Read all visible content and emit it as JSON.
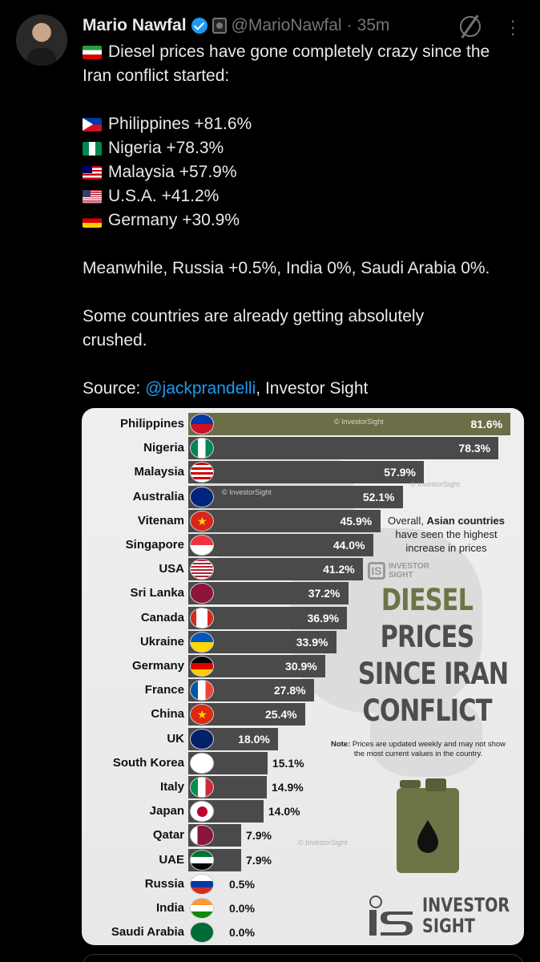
{
  "post": {
    "author_name": "Mario Nawfal",
    "handle": "@MarioNawfal",
    "separator": "·",
    "time": "35m",
    "lines": [
      "Diesel prices have gone completely crazy since the",
      "Iran conflict started:",
      "Philippines +81.6%",
      "Nigeria +78.3%",
      "Malaysia +57.9%",
      "U.S.A. +41.2%",
      "Germany +30.9%",
      "Meanwhile, Russia +0.5%, India 0%, Saudi Arabia 0%.",
      "Some countries are already getting absolutely crushed.",
      "Source: ",
      "@jackprandelli",
      ", Investor Sight"
    ]
  },
  "infographic": {
    "title_lines": [
      "DIESEL",
      "PRICES",
      "SINCE IRAN",
      "CONFLICT"
    ],
    "overall_prefix": "Overall, ",
    "overall_bold": "Asian countries",
    "overall_rest": "have seen the highest increase in prices",
    "note_bold": "Note:",
    "note_text": "Prices are updated weekly and may not show the most current values in the country.",
    "watermark": "© InvestorSight",
    "brand_line1": "INVESTOR",
    "brand_line2": "SIGHT",
    "logo_mark": "IS",
    "colors": {
      "bar": "#4a4a4a",
      "bar_top": "#6b6e47",
      "background": "#ececec"
    },
    "chart_data": {
      "type": "bar",
      "title": "DIESEL PRICES SINCE IRAN CONFLICT",
      "categories": [
        "Philippines",
        "Nigeria",
        "Malaysia",
        "Australia",
        "Vitenam",
        "Singapore",
        "USA",
        "Sri Lanka",
        "Canada",
        "Ukraine",
        "Germany",
        "France",
        "China",
        "UK",
        "South Korea",
        "Italy",
        "Japan",
        "Qatar",
        "UAE",
        "Russia",
        "India",
        "Saudi Arabia"
      ],
      "values": [
        81.6,
        78.3,
        57.9,
        52.1,
        45.9,
        44.0,
        41.2,
        37.2,
        36.9,
        33.9,
        30.9,
        27.8,
        25.4,
        18.0,
        15.1,
        14.9,
        14.0,
        7.9,
        7.9,
        0.5,
        0.0,
        0.0
      ],
      "labels": [
        "81.6%",
        "78.3%",
        "57.9%",
        "52.1%",
        "45.9%",
        "44.0%",
        "41.2%",
        "37.2%",
        "36.9%",
        "33.9%",
        "30.9%",
        "27.8%",
        "25.4%",
        "18.0%",
        "15.1%",
        "14.9%",
        "14.0%",
        "7.9%",
        "7.9%",
        "0.5%",
        "0.0%",
        "0.0%"
      ],
      "orientation": "horizontal",
      "xlim": [
        0,
        85
      ]
    }
  }
}
